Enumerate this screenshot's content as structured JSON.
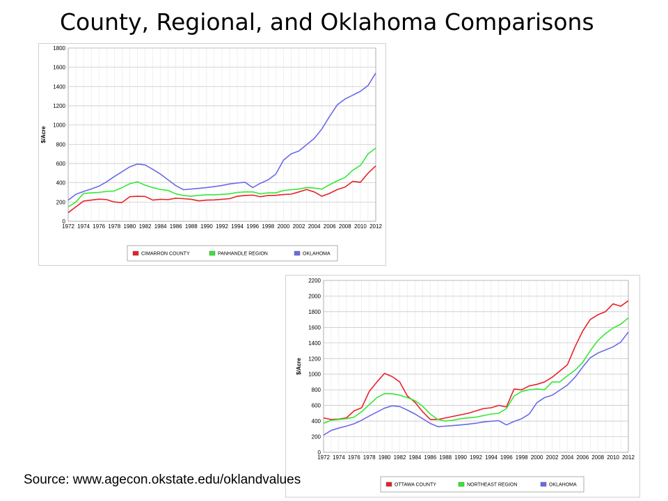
{
  "title": "County, Regional, and Oklahoma Comparisons",
  "source": "Source: www.agecon.okstate.edu/oklandvalues",
  "chart_data": [
    {
      "type": "line",
      "title": "",
      "xlabel": "",
      "ylabel": "$/Acre",
      "x": [
        1972,
        1973,
        1974,
        1975,
        1976,
        1977,
        1978,
        1979,
        1980,
        1981,
        1982,
        1983,
        1984,
        1985,
        1986,
        1987,
        1988,
        1989,
        1990,
        1991,
        1992,
        1993,
        1994,
        1995,
        1996,
        1997,
        1998,
        1999,
        2000,
        2001,
        2002,
        2003,
        2004,
        2005,
        2006,
        2007,
        2008,
        2009,
        2010,
        2011,
        2012
      ],
      "xticks": [
        "1972",
        "1974",
        "1976",
        "1978",
        "1980",
        "1982",
        "1984",
        "1986",
        "1988",
        "1990",
        "1992",
        "1994",
        "1996",
        "1998",
        "2000",
        "2002",
        "2004",
        "2006",
        "2008",
        "2010",
        "2012"
      ],
      "ylim": [
        0,
        1800
      ],
      "yticks": [
        "0",
        "200",
        "400",
        "600",
        "800",
        "1000",
        "1200",
        "1400",
        "1600",
        "1800"
      ],
      "grid": true,
      "legend": "bottom",
      "series": [
        {
          "name": "CIMARRON COUNTY",
          "color": "#e8202a",
          "values": [
            90,
            150,
            210,
            220,
            230,
            225,
            200,
            195,
            255,
            260,
            258,
            220,
            228,
            225,
            240,
            235,
            228,
            212,
            220,
            222,
            228,
            235,
            260,
            268,
            272,
            255,
            268,
            270,
            278,
            282,
            305,
            330,
            305,
            260,
            290,
            330,
            355,
            415,
            405,
            500,
            575
          ]
        },
        {
          "name": "PANHANDLE REGION",
          "color": "#33e833",
          "values": [
            150,
            200,
            290,
            295,
            300,
            310,
            315,
            350,
            390,
            410,
            375,
            350,
            330,
            320,
            285,
            268,
            260,
            270,
            275,
            275,
            280,
            285,
            300,
            305,
            305,
            285,
            295,
            295,
            320,
            328,
            335,
            350,
            345,
            335,
            380,
            420,
            455,
            530,
            580,
            700,
            760
          ]
        },
        {
          "name": "OKLAHOMA",
          "color": "#6a6ae8",
          "values": [
            220,
            280,
            310,
            335,
            365,
            410,
            465,
            515,
            565,
            595,
            585,
            540,
            490,
            430,
            370,
            328,
            335,
            342,
            350,
            360,
            372,
            388,
            398,
            405,
            350,
            395,
            430,
            490,
            635,
            700,
            730,
            795,
            860,
            960,
            1090,
            1210,
            1270,
            1310,
            1350,
            1410,
            1540
          ]
        }
      ]
    },
    {
      "type": "line",
      "title": "",
      "xlabel": "",
      "ylabel": "$/Acre",
      "x": [
        1972,
        1973,
        1974,
        1975,
        1976,
        1977,
        1978,
        1979,
        1980,
        1981,
        1982,
        1983,
        1984,
        1985,
        1986,
        1987,
        1988,
        1989,
        1990,
        1991,
        1992,
        1993,
        1994,
        1995,
        1996,
        1997,
        1998,
        1999,
        2000,
        2001,
        2002,
        2003,
        2004,
        2005,
        2006,
        2007,
        2008,
        2009,
        2010,
        2011,
        2012
      ],
      "xticks": [
        "1972",
        "1974",
        "1976",
        "1978",
        "1980",
        "1982",
        "1984",
        "1986",
        "1988",
        "1990",
        "1992",
        "1994",
        "1996",
        "1998",
        "2000",
        "2002",
        "2004",
        "2006",
        "2008",
        "2010",
        "2012"
      ],
      "ylim": [
        0,
        2200
      ],
      "yticks": [
        "0",
        "200",
        "400",
        "600",
        "800",
        "1000",
        "1200",
        "1400",
        "1600",
        "1800",
        "2000",
        "2200"
      ],
      "grid": true,
      "legend": "bottom",
      "series": [
        {
          "name": "OTTAWA COUNTY",
          "color": "#e8202a",
          "values": [
            440,
            420,
            425,
            440,
            530,
            570,
            780,
            900,
            1010,
            970,
            900,
            720,
            640,
            520,
            420,
            420,
            440,
            460,
            480,
            500,
            530,
            560,
            570,
            600,
            580,
            810,
            800,
            850,
            870,
            900,
            960,
            1040,
            1120,
            1350,
            1550,
            1700,
            1760,
            1800,
            1900,
            1870,
            1940
          ]
        },
        {
          "name": "NORTHEAST REGION",
          "color": "#33e833",
          "values": [
            370,
            410,
            420,
            430,
            450,
            520,
            610,
            700,
            750,
            750,
            730,
            700,
            660,
            590,
            490,
            420,
            400,
            410,
            430,
            440,
            450,
            470,
            490,
            500,
            560,
            720,
            780,
            800,
            810,
            800,
            900,
            900,
            980,
            1050,
            1150,
            1300,
            1430,
            1520,
            1590,
            1640,
            1720
          ]
        },
        {
          "name": "OKLAHOMA",
          "color": "#6a6ae8",
          "values": [
            220,
            280,
            310,
            335,
            365,
            410,
            465,
            515,
            565,
            595,
            585,
            540,
            490,
            430,
            370,
            328,
            335,
            342,
            350,
            360,
            372,
            388,
            398,
            405,
            350,
            395,
            430,
            490,
            635,
            700,
            730,
            795,
            860,
            960,
            1090,
            1210,
            1270,
            1310,
            1350,
            1410,
            1540
          ]
        }
      ]
    }
  ]
}
